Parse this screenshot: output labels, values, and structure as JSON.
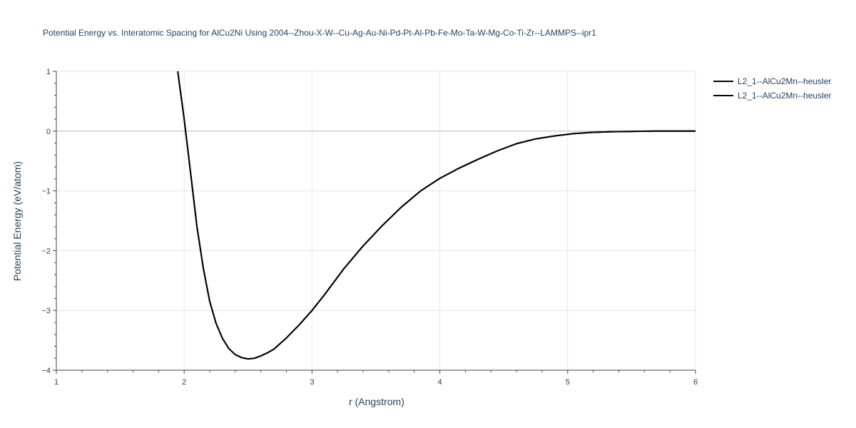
{
  "chart_data": {
    "type": "line",
    "title": "Potential Energy vs. Interatomic Spacing for AlCu2Ni Using 2004--Zhou-X-W--Cu-Ag-Au-Ni-Pd-Pt-Al-Pb-Fe-Mo-Ta-W-Mg-Co-Ti-Zr--LAMMPS--ipr1",
    "xlabel": "r (Angstrom)",
    "ylabel": "Potential Energy (eV/atom)",
    "xlim": [
      1,
      6
    ],
    "ylim": [
      -4,
      1
    ],
    "x_ticks": [
      1,
      2,
      3,
      4,
      5,
      6
    ],
    "x_tick_labels": [
      "1",
      "2",
      "3",
      "4",
      "5",
      "6"
    ],
    "y_ticks": [
      1,
      0,
      -1,
      -2,
      -3,
      -4
    ],
    "y_tick_labels": [
      "1",
      "0",
      "−1",
      "−2",
      "−3",
      "−4"
    ],
    "grid": true,
    "legend_position": "top-right",
    "series": [
      {
        "name": "L2_1--AlCu2Mn--heusler",
        "color": "#000000",
        "x": [
          1.95,
          2.0,
          2.05,
          2.1,
          2.15,
          2.2,
          2.25,
          2.3,
          2.35,
          2.4,
          2.45,
          2.5,
          2.55,
          2.6,
          2.65,
          2.7,
          2.8,
          2.9,
          3.0,
          3.1,
          3.25,
          3.4,
          3.55,
          3.7,
          3.85,
          4.0,
          4.15,
          4.3,
          4.45,
          4.6,
          4.75,
          4.9,
          5.05,
          5.2,
          5.35,
          5.5,
          5.7,
          5.85,
          6.0
        ],
        "y": [
          1.0,
          0.2,
          -0.7,
          -1.6,
          -2.3,
          -2.85,
          -3.22,
          -3.47,
          -3.64,
          -3.74,
          -3.79,
          -3.81,
          -3.8,
          -3.76,
          -3.71,
          -3.65,
          -3.46,
          -3.24,
          -3.0,
          -2.73,
          -2.3,
          -1.92,
          -1.58,
          -1.27,
          -1.0,
          -0.79,
          -0.62,
          -0.47,
          -0.33,
          -0.21,
          -0.13,
          -0.08,
          -0.04,
          -0.02,
          -0.01,
          -0.005,
          0.0,
          0.0,
          0.0
        ]
      },
      {
        "name": "L2_1--AlCu2Mn--heusler",
        "color": "#000000",
        "x": [
          1.95,
          2.0,
          2.05,
          2.1,
          2.15,
          2.2,
          2.25,
          2.3,
          2.35,
          2.4,
          2.45,
          2.5,
          2.55,
          2.6,
          2.65,
          2.7,
          2.8,
          2.9,
          3.0,
          3.1,
          3.25,
          3.4,
          3.55,
          3.7,
          3.85,
          4.0,
          4.15,
          4.3,
          4.45,
          4.6,
          4.75,
          4.9,
          5.05,
          5.2,
          5.35,
          5.5,
          5.7,
          5.85,
          6.0
        ],
        "y": [
          1.0,
          0.2,
          -0.7,
          -1.6,
          -2.3,
          -2.85,
          -3.22,
          -3.47,
          -3.64,
          -3.74,
          -3.79,
          -3.81,
          -3.8,
          -3.76,
          -3.71,
          -3.65,
          -3.46,
          -3.24,
          -3.0,
          -2.73,
          -2.3,
          -1.92,
          -1.58,
          -1.27,
          -1.0,
          -0.79,
          -0.62,
          -0.47,
          -0.33,
          -0.21,
          -0.13,
          -0.08,
          -0.04,
          -0.02,
          -0.01,
          -0.005,
          0.0,
          0.0,
          0.0
        ]
      }
    ]
  }
}
